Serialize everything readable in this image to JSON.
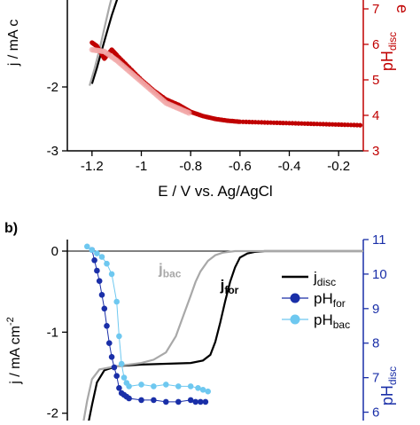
{
  "chart_data": [
    {
      "type": "scatter",
      "panel_label": "",
      "xlabel": "E / V vs. Ag/AgCl",
      "ylabel_left": "j / mA c",
      "ylabel_right_main": "pH",
      "ylabel_right_sub": "disc",
      "right_label_letter": "e",
      "xlim": [
        -1.3,
        -0.1
      ],
      "ylim_left": [
        -3,
        -0.5
      ],
      "ylim_right": [
        3,
        7.5
      ],
      "x_ticks": [
        -1.2,
        -1,
        -0.8,
        -0.6,
        -0.4,
        -0.2
      ],
      "x_tick_labels": [
        "-1.2",
        "-1",
        "-0.8",
        "-0.6",
        "-0.4",
        "-0.2"
      ],
      "y_left_ticks": [
        -3,
        -2
      ],
      "y_left_tick_labels": [
        "-3",
        "-2"
      ],
      "y_right_ticks": [
        3,
        4,
        5,
        6,
        7
      ],
      "y_right_tick_labels": [
        "3",
        "4",
        "5",
        "6",
        "7"
      ],
      "colors": {
        "j_for": "#000000",
        "j_bac": "#a8a8a8",
        "ph": "#c00000",
        "ph_light": "#f2a8a8"
      },
      "series": [
        {
          "axis": "left",
          "color_key": "j_for",
          "x": [
            -1.2,
            -1.18,
            -1.16,
            -1.14,
            -1.12,
            -1.1,
            -1.08
          ],
          "y": [
            -1.95,
            -1.7,
            -1.42,
            -1.15,
            -0.88,
            -0.65,
            -0.45
          ]
        },
        {
          "axis": "left",
          "color_key": "j_bac",
          "x": [
            -1.21,
            -1.19,
            -1.17,
            -1.15,
            -1.13,
            -1.11
          ],
          "y": [
            -1.98,
            -1.72,
            -1.42,
            -1.08,
            -0.75,
            -0.45
          ]
        },
        {
          "axis": "right",
          "color_key": "ph",
          "x": [
            -1.2,
            -1.18,
            -1.15,
            -1.12,
            -1.1,
            -1.05,
            -1.0,
            -0.95,
            -0.9,
            -0.85,
            -0.8,
            -0.75,
            -0.7,
            -0.65,
            -0.6,
            -0.5,
            -0.4,
            -0.3,
            -0.2,
            -0.1
          ],
          "y": [
            6.05,
            5.95,
            5.6,
            5.85,
            5.7,
            5.35,
            5.0,
            4.7,
            4.45,
            4.3,
            4.1,
            3.98,
            3.9,
            3.85,
            3.82,
            3.8,
            3.78,
            3.76,
            3.74,
            3.72
          ]
        },
        {
          "axis": "right",
          "color_key": "ph_light",
          "x": [
            -1.2,
            -1.15,
            -1.1,
            -1.05,
            -1.0,
            -0.95,
            -0.9,
            -0.85,
            -0.8
          ],
          "y": [
            5.85,
            5.8,
            5.55,
            5.25,
            4.95,
            4.65,
            4.35,
            4.2,
            4.05
          ]
        }
      ]
    },
    {
      "type": "line",
      "panel_label": "b)",
      "xlabel": "",
      "ylabel_left": "j / mA cm",
      "ylabel_left_sup": "-2",
      "ylabel_right_main": "pH",
      "ylabel_right_sub": "disc",
      "xlim": [
        -1.3,
        -0.1
      ],
      "ylim_left": [
        -2.2,
        0
      ],
      "ylim_right": [
        5.5,
        11
      ],
      "y_left_ticks": [
        -2,
        -1,
        0
      ],
      "y_left_tick_labels": [
        "-2",
        "-1",
        "0"
      ],
      "y_right_ticks": [
        6,
        7,
        8,
        9,
        10,
        11
      ],
      "y_right_tick_labels": [
        "6",
        "7",
        "8",
        "9",
        "10",
        "11"
      ],
      "annotations": [
        {
          "text": "j",
          "sub": "bac",
          "x": -0.93,
          "y": -0.28,
          "color": "#a8a8a8"
        },
        {
          "text": "j",
          "sub": "for",
          "x": -0.68,
          "y": -0.48,
          "color": "#000000"
        }
      ],
      "legend": [
        {
          "text": "j",
          "sub": "disc",
          "style": "line",
          "color": "#000000"
        },
        {
          "text": "pH",
          "sub": "for",
          "style": "marker",
          "color": "#1a2fa8"
        },
        {
          "text": "pH",
          "sub": "bac",
          "style": "marker",
          "color": "#6ec8f0"
        }
      ],
      "colors": {
        "j_for": "#000000",
        "j_bac": "#a8a8a8",
        "ph_for": "#1a2fa8",
        "ph_bac": "#6ec8f0"
      },
      "series": [
        {
          "axis": "left",
          "color_key": "j_for",
          "x": [
            -1.22,
            -1.2,
            -1.18,
            -1.15,
            -1.1,
            -1.0,
            -0.9,
            -0.8,
            -0.75,
            -0.72,
            -0.7,
            -0.68,
            -0.66,
            -0.64,
            -0.62,
            -0.6,
            -0.57,
            -0.54,
            -0.5,
            -0.4,
            -0.3,
            -0.2,
            -0.1
          ],
          "y": [
            -2.2,
            -1.9,
            -1.62,
            -1.47,
            -1.42,
            -1.4,
            -1.39,
            -1.38,
            -1.35,
            -1.28,
            -1.12,
            -0.88,
            -0.62,
            -0.38,
            -0.2,
            -0.08,
            -0.03,
            -0.01,
            0,
            0,
            0,
            0,
            0
          ]
        },
        {
          "axis": "left",
          "color_key": "j_bac",
          "x": [
            -1.24,
            -1.22,
            -1.2,
            -1.17,
            -1.1,
            -1.0,
            -0.95,
            -0.9,
            -0.86,
            -0.83,
            -0.8,
            -0.78,
            -0.76,
            -0.73,
            -0.7,
            -0.67,
            -0.62,
            -0.5,
            -0.4,
            -0.3,
            -0.2,
            -0.1
          ],
          "y": [
            -2.2,
            -1.85,
            -1.58,
            -1.46,
            -1.42,
            -1.38,
            -1.34,
            -1.25,
            -1.05,
            -0.8,
            -0.55,
            -0.38,
            -0.25,
            -0.12,
            -0.05,
            -0.02,
            0,
            0,
            0,
            0,
            0,
            0
          ]
        },
        {
          "axis": "right",
          "color_key": "ph_for",
          "x": [
            -1.2,
            -1.19,
            -1.18,
            -1.17,
            -1.16,
            -1.15,
            -1.14,
            -1.13,
            -1.12,
            -1.11,
            -1.1,
            -1.09,
            -1.08,
            -1.07,
            -1.06,
            -1.05,
            -1.0,
            -0.95,
            -0.9,
            -0.85,
            -0.8,
            -0.78,
            -0.76,
            -0.74
          ],
          "y": [
            10.7,
            10.4,
            10.1,
            9.8,
            9.4,
            9.0,
            8.5,
            8.0,
            7.6,
            7.3,
            7.05,
            6.7,
            6.55,
            6.5,
            6.45,
            6.4,
            6.35,
            6.35,
            6.3,
            6.3,
            6.35,
            6.3,
            6.3,
            6.3
          ]
        },
        {
          "axis": "right",
          "color_key": "ph_bac",
          "x": [
            -1.22,
            -1.2,
            -1.18,
            -1.16,
            -1.14,
            -1.12,
            -1.1,
            -1.09,
            -1.08,
            -1.07,
            -1.06,
            -1.05,
            -1.0,
            -0.95,
            -0.9,
            -0.85,
            -0.8,
            -0.77,
            -0.75,
            -0.73
          ],
          "y": [
            10.8,
            10.7,
            10.6,
            10.5,
            10.3,
            10.0,
            9.2,
            8.2,
            7.4,
            7.0,
            6.85,
            6.75,
            6.8,
            6.75,
            6.8,
            6.75,
            6.75,
            6.7,
            6.65,
            6.6
          ]
        }
      ]
    }
  ]
}
